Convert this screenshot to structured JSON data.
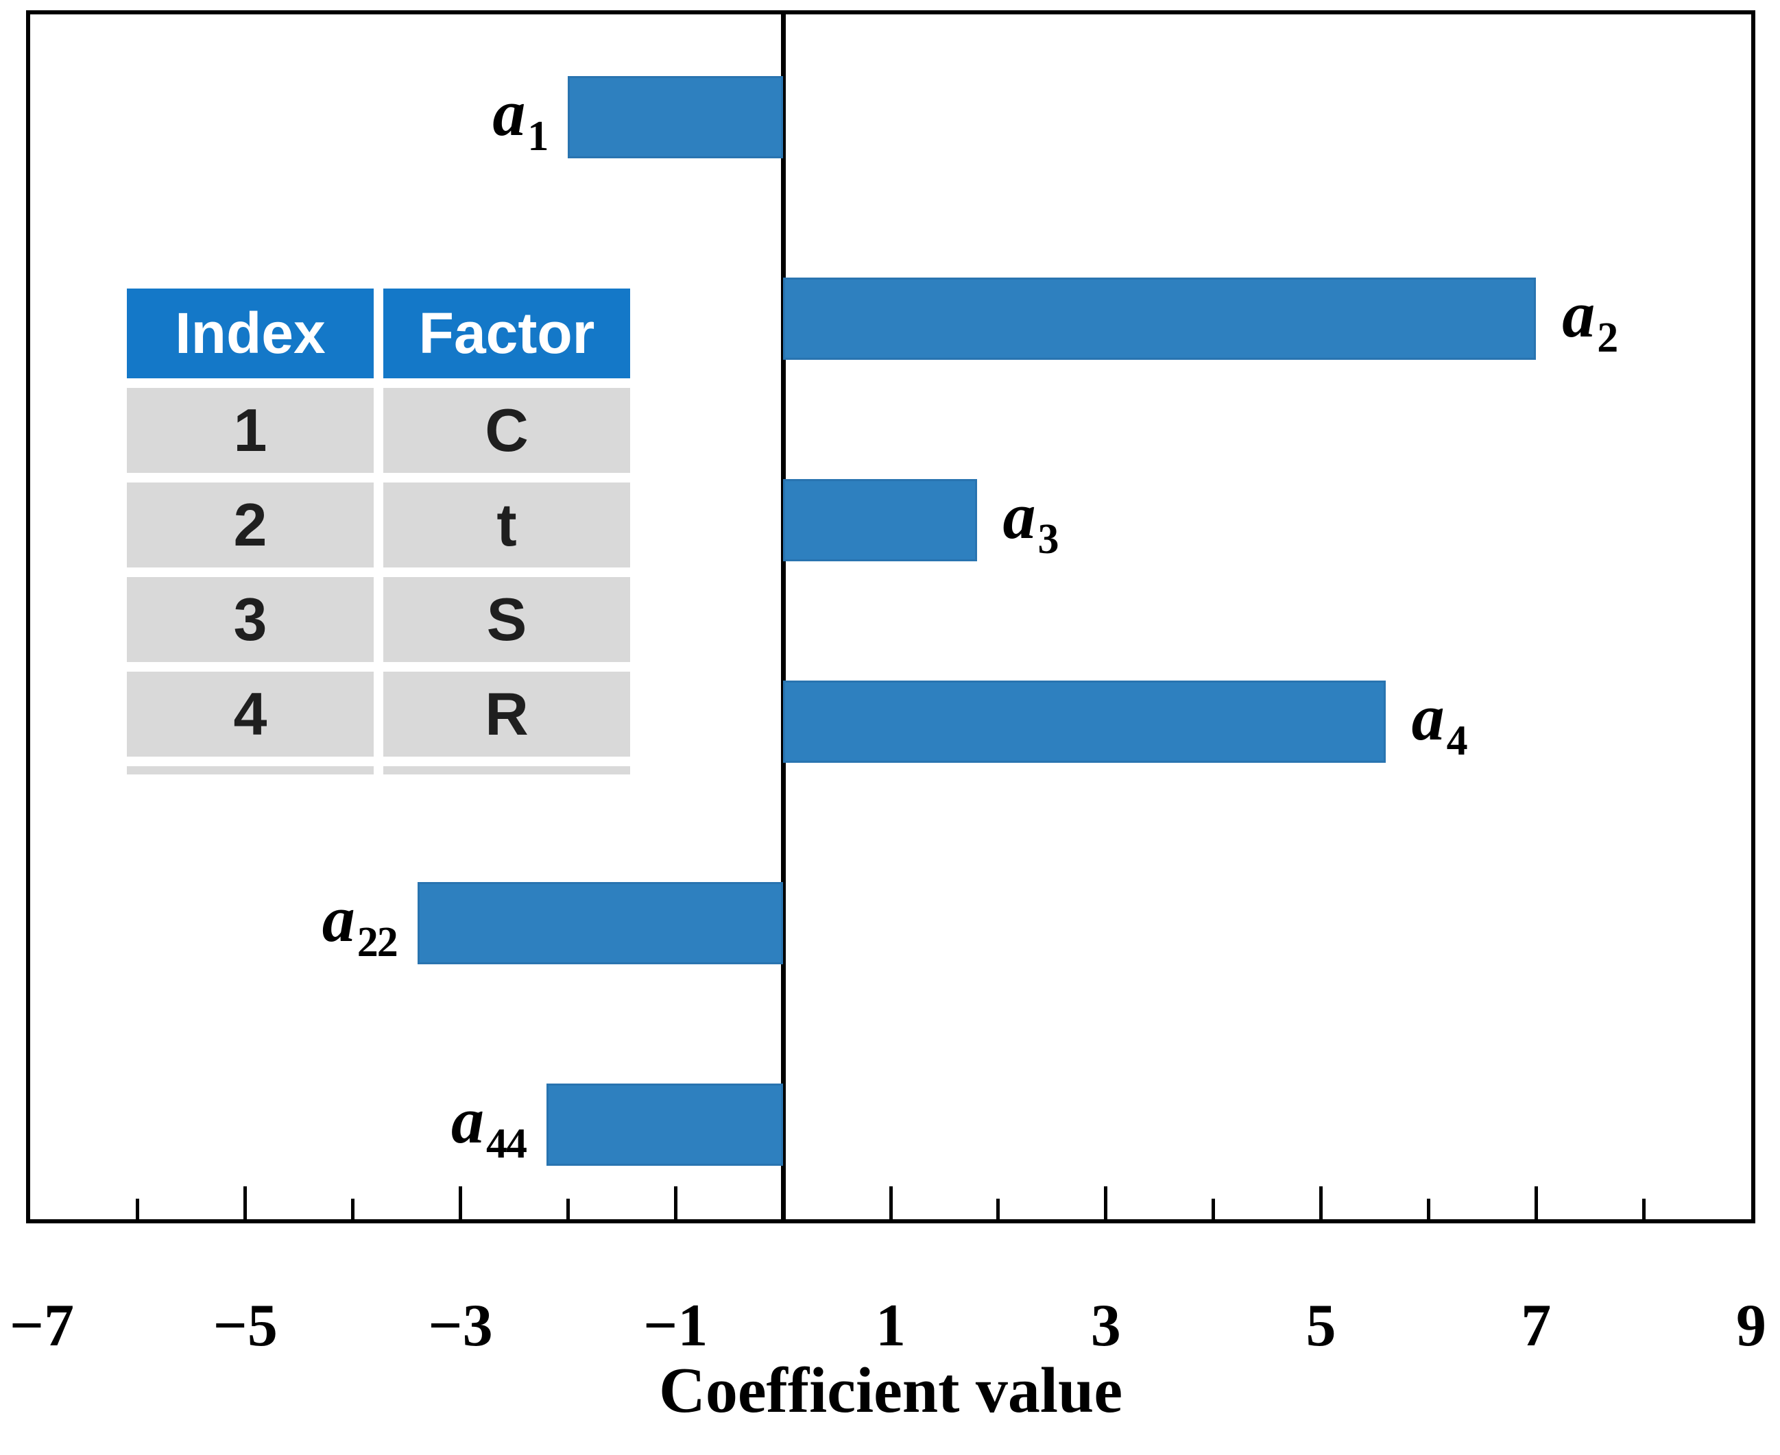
{
  "chart_data": {
    "type": "bar",
    "orientation": "horizontal",
    "title": "",
    "xlabel": "Coefficient value",
    "ylabel": "",
    "xlim": [
      -7,
      9
    ],
    "grid": false,
    "legend": null,
    "bar_color": "#2E80BF",
    "bars": [
      {
        "base": "a",
        "subscript": "1",
        "value": -2.0
      },
      {
        "base": "a",
        "subscript": "2",
        "value": 7.0
      },
      {
        "base": "a",
        "subscript": "3",
        "value": 1.8
      },
      {
        "base": "a",
        "subscript": "4",
        "value": 5.6
      },
      {
        "base": "a",
        "subscript": "22",
        "value": -3.4
      },
      {
        "base": "a",
        "subscript": "44",
        "value": -2.2
      }
    ],
    "x_tick_labels": [
      {
        "value": -7,
        "text": "−7"
      },
      {
        "value": -5,
        "text": "−5"
      },
      {
        "value": -3,
        "text": "−3"
      },
      {
        "value": -1,
        "text": "−1"
      },
      {
        "value": 1,
        "text": "1"
      },
      {
        "value": 3,
        "text": "3"
      },
      {
        "value": 5,
        "text": "5"
      },
      {
        "value": 7,
        "text": "7"
      },
      {
        "value": 9,
        "text": "9"
      }
    ],
    "major_tick_values": [
      -5,
      -3,
      -1,
      1,
      3,
      5,
      7
    ],
    "minor_tick_values": [
      -6,
      -4,
      -2,
      2,
      4,
      6,
      8
    ]
  },
  "inset_table": {
    "headers": [
      "Index",
      "Factor"
    ],
    "rows": [
      [
        "1",
        "C"
      ],
      [
        "2",
        "t"
      ],
      [
        "3",
        "S"
      ],
      [
        "4",
        "R"
      ]
    ],
    "header_bg": "#1478C8",
    "header_text_color": "#FFFFFF",
    "row_bg": "#D9D9D9",
    "cell_text_color": "#1F1F1F"
  }
}
